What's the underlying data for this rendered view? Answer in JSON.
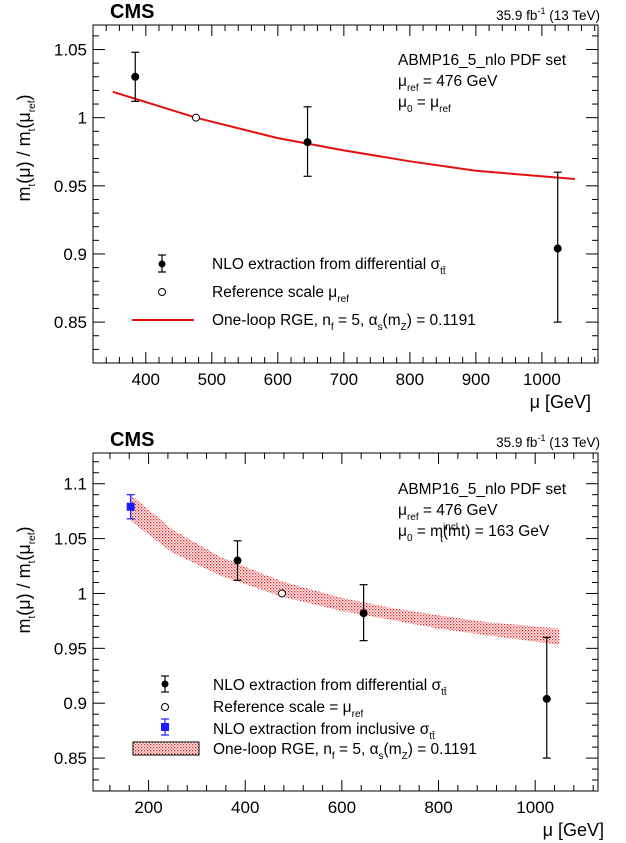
{
  "charts": [
    {
      "experiment": "CMS",
      "lumi": "35.9 fb",
      "lumi_sup": "-1",
      "energy": " (13 TeV)",
      "pdf_set": "ABMP16_5_nlo PDF set",
      "mu_ref_value": " = 476 GeV",
      "mu0_value": "",
      "xlabel": "μ [GeV]",
      "legend": {
        "nlo_diff": "NLO extraction from differential σ",
        "ref_scale": "Reference scale μ",
        "rge_prefix": "One-loop RGE, n",
        "rge_mid": " = 5, α",
        "rge_suffix": ") = 0.1191"
      }
    },
    {
      "experiment": "CMS",
      "lumi": "35.9 fb",
      "lumi_sup": "-1",
      "energy": " (13 TeV)",
      "pdf_set": "ABMP16_5_nlo PDF set",
      "mu_ref_value": " = 476 GeV",
      "mu0_value": " = m",
      "mu0_incl_sup": "incl",
      "mu0_incl_tail": "(mt) = 163 GeV",
      "xlabel": "μ [GeV]",
      "legend": {
        "nlo_diff": "NLO extraction from differential σ",
        "ref_scale": "Reference scale = μ",
        "nlo_incl": "NLO extraction from inclusive σ",
        "rge_prefix": "One-loop RGE, n",
        "rge_mid": " = 5, α",
        "rge_suffix": ") = 0.1191"
      }
    }
  ],
  "chart_data": [
    {
      "type": "scatter",
      "xlabel": "μ [GeV]",
      "ylabel": "m_t(μ) / m_t(μ_ref)",
      "xlim": [
        320,
        1085
      ],
      "ylim": [
        0.82,
        1.068
      ],
      "xticks": [
        400,
        500,
        600,
        700,
        800,
        900,
        1000
      ],
      "yticks": [
        0.85,
        0.9,
        0.95,
        1,
        1.05
      ],
      "series": [
        {
          "name": "NLO extraction from differential σ_tt̄",
          "x": [
            384,
            645,
            1024
          ],
          "y": [
            1.03,
            0.982,
            0.904
          ],
          "err_low": [
            0.018,
            0.025,
            0.054
          ],
          "err_high": [
            0.018,
            0.026,
            0.056
          ],
          "color": "#000000"
        },
        {
          "name": "Reference scale μ_ref",
          "x": [
            476
          ],
          "y": [
            1.0
          ],
          "marker": "open-circle"
        },
        {
          "name": "One-loop RGE, n_f = 5, α_s(m_Z) = 0.1191",
          "x": [
            350,
            476,
            600,
            700,
            800,
            900,
            1050
          ],
          "y": [
            1.019,
            1.0,
            0.985,
            0.976,
            0.968,
            0.961,
            0.955
          ],
          "color": "#e41010"
        }
      ]
    },
    {
      "type": "scatter",
      "xlabel": "μ [GeV]",
      "ylabel": "m_t(μ) / m_t(μ_ref)",
      "xlim": [
        85,
        1130
      ],
      "ylim": [
        0.82,
        1.128
      ],
      "xticks": [
        200,
        400,
        600,
        800,
        1000
      ],
      "yticks": [
        0.85,
        0.9,
        0.95,
        1,
        1.05,
        1.1
      ],
      "series": [
        {
          "name": "NLO extraction from differential σ_tt̄",
          "x": [
            384,
            645,
            1024
          ],
          "y": [
            1.03,
            0.982,
            0.904
          ],
          "err_low": [
            0.018,
            0.025,
            0.054
          ],
          "err_high": [
            0.018,
            0.026,
            0.056
          ],
          "color": "#000000"
        },
        {
          "name": "Reference scale = μ_ref",
          "x": [
            476
          ],
          "y": [
            1.0
          ],
          "marker": "open-circle"
        },
        {
          "name": "NLO extraction from inclusive σ_tt̄",
          "x": [
            163
          ],
          "y": [
            1.079
          ],
          "err_low": [
            0.011
          ],
          "err_high": [
            0.011
          ],
          "color": "#1a1aff"
        },
        {
          "name": "One-loop RGE, n_f = 5, α_s(m_Z) = 0.1191",
          "type": "band",
          "x": [
            163,
            250,
            350,
            476,
            600,
            700,
            800,
            900,
            1050
          ],
          "y_high": [
            1.09,
            1.058,
            1.033,
            1.011,
            0.996,
            0.987,
            0.98,
            0.974,
            0.968
          ],
          "y_low": [
            1.066,
            1.037,
            1.016,
            0.997,
            0.984,
            0.976,
            0.968,
            0.962,
            0.953
          ],
          "color": "#e41010"
        }
      ]
    }
  ]
}
